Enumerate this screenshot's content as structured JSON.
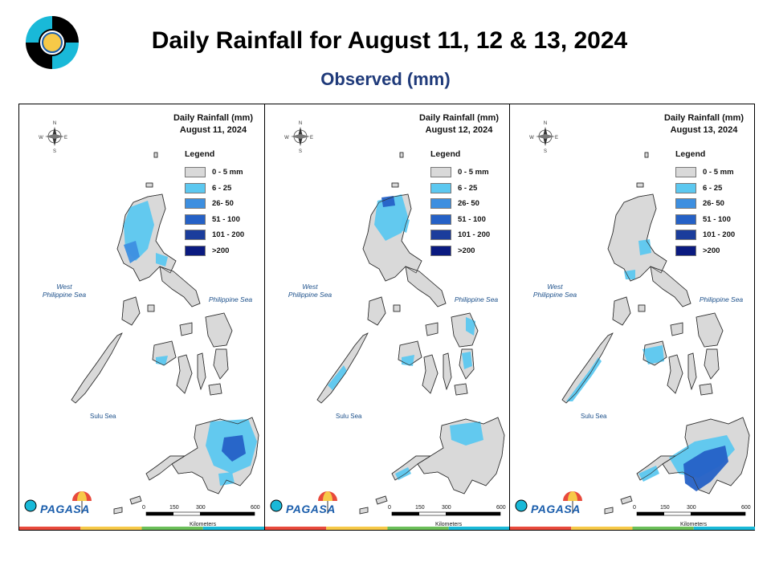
{
  "header": {
    "title": "Daily Rainfall for August 11, 12 & 13, 2024",
    "subtitle": "Observed (mm)"
  },
  "colors": {
    "c0": "#d9d9d9",
    "c1": "#5cc8f0",
    "c2": "#3d8fe0",
    "c3": "#2561c6",
    "c4": "#1b3d9c",
    "c5": "#0a1a80"
  },
  "legend": {
    "title": "Legend",
    "items": [
      {
        "label": "0 - 5 mm",
        "color": "#d9d9d9"
      },
      {
        "label": "6 - 25",
        "color": "#5cc8f0"
      },
      {
        "label": "26- 50",
        "color": "#3d8fe0"
      },
      {
        "label": "51 - 100",
        "color": "#2561c6"
      },
      {
        "label": "101 - 200",
        "color": "#1b3d9c"
      },
      {
        "label": ">200",
        "color": "#0a1a80"
      }
    ]
  },
  "labels": {
    "west_sea": "West\nPhilippine Sea",
    "phil_sea": "Philippine Sea",
    "sulu_sea": "Sulu Sea",
    "scale_ticks": [
      "0",
      "150",
      "300",
      "600"
    ],
    "scale_unit": "Kilometers",
    "compass": {
      "n": "N",
      "s": "S",
      "e": "E",
      "w": "W"
    },
    "pagasa": "PAGASA"
  },
  "panels": [
    {
      "heading": "Daily Rainfall (mm)",
      "date": "August 11, 2024"
    },
    {
      "heading": "Daily Rainfall (mm)",
      "date": "August 12, 2024"
    },
    {
      "heading": "Daily Rainfall (mm)",
      "date": "August 13, 2024"
    }
  ]
}
